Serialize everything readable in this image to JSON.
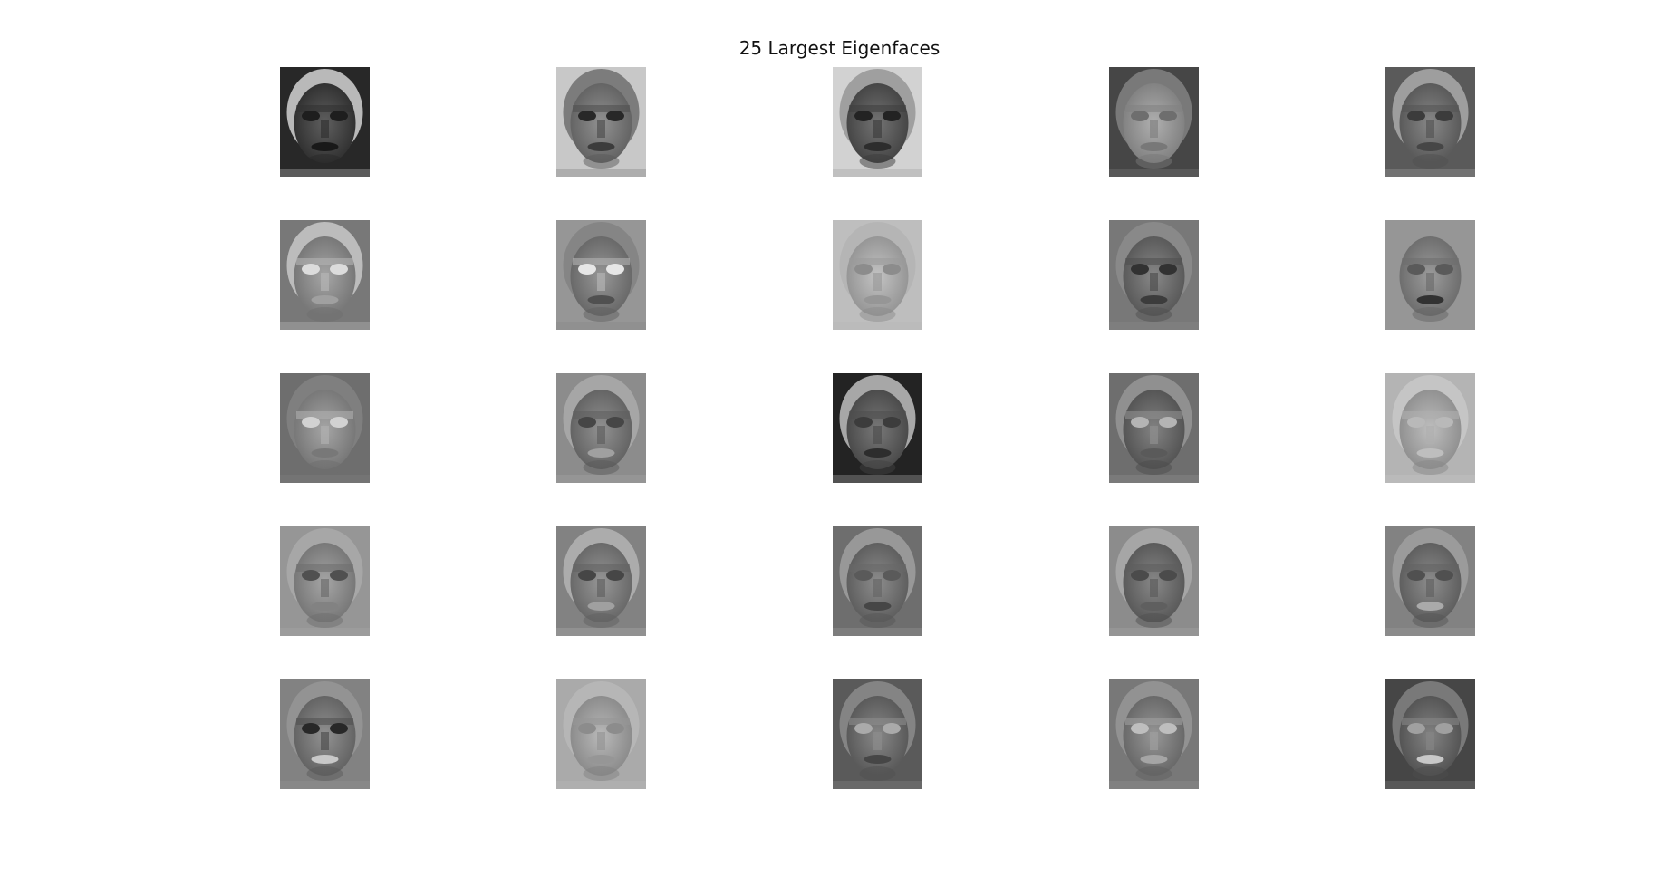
{
  "figure": {
    "title": "25 Largest Eigenfaces"
  },
  "images": {
    "count": 25,
    "rows": 5,
    "columns": 5,
    "content": "grayscale eigenface images",
    "tones": [
      {
        "bg": 40,
        "face": 70,
        "eyes": 30,
        "mouth": 25,
        "hair": 210
      },
      {
        "bg": 200,
        "face": 120,
        "eyes": 40,
        "mouth": 60,
        "hair": 110
      },
      {
        "bg": 210,
        "face": 90,
        "eyes": 35,
        "mouth": 45,
        "hair": 150
      },
      {
        "bg": 70,
        "face": 150,
        "eyes": 110,
        "mouth": 120,
        "hair": 130
      },
      {
        "bg": 90,
        "face": 110,
        "eyes": 60,
        "mouth": 70,
        "hair": 170
      },
      {
        "bg": 120,
        "face": 140,
        "eyes": 220,
        "mouth": 160,
        "hair": 200
      },
      {
        "bg": 150,
        "face": 125,
        "eyes": 230,
        "mouth": 80,
        "hair": 130
      },
      {
        "bg": 190,
        "face": 170,
        "eyes": 140,
        "mouth": 150,
        "hair": 180
      },
      {
        "bg": 120,
        "face": 110,
        "eyes": 50,
        "mouth": 60,
        "hair": 140
      },
      {
        "bg": 150,
        "face": 130,
        "eyes": 90,
        "mouth": 50,
        "hair": 150
      },
      {
        "bg": 110,
        "face": 140,
        "eyes": 210,
        "mouth": 120,
        "hair": 130
      },
      {
        "bg": 140,
        "face": 120,
        "eyes": 70,
        "mouth": 160,
        "hair": 170
      },
      {
        "bg": 35,
        "face": 95,
        "eyes": 60,
        "mouth": 45,
        "hair": 190
      },
      {
        "bg": 110,
        "face": 105,
        "eyes": 180,
        "mouth": 90,
        "hair": 150
      },
      {
        "bg": 180,
        "face": 165,
        "eyes": 185,
        "mouth": 190,
        "hair": 200
      },
      {
        "bg": 150,
        "face": 140,
        "eyes": 80,
        "mouth": 130,
        "hair": 170
      },
      {
        "bg": 130,
        "face": 125,
        "eyes": 70,
        "mouth": 160,
        "hair": 180
      },
      {
        "bg": 110,
        "face": 115,
        "eyes": 90,
        "mouth": 70,
        "hair": 160
      },
      {
        "bg": 140,
        "face": 110,
        "eyes": 75,
        "mouth": 95,
        "hair": 170
      },
      {
        "bg": 130,
        "face": 115,
        "eyes": 80,
        "mouth": 170,
        "hair": 160
      },
      {
        "bg": 130,
        "face": 120,
        "eyes": 40,
        "mouth": 200,
        "hair": 150
      },
      {
        "bg": 170,
        "face": 160,
        "eyes": 140,
        "mouth": 150,
        "hair": 185
      },
      {
        "bg": 90,
        "face": 110,
        "eyes": 170,
        "mouth": 70,
        "hair": 140
      },
      {
        "bg": 120,
        "face": 125,
        "eyes": 190,
        "mouth": 165,
        "hair": 150
      },
      {
        "bg": 70,
        "face": 105,
        "eyes": 160,
        "mouth": 200,
        "hair": 130
      }
    ]
  }
}
